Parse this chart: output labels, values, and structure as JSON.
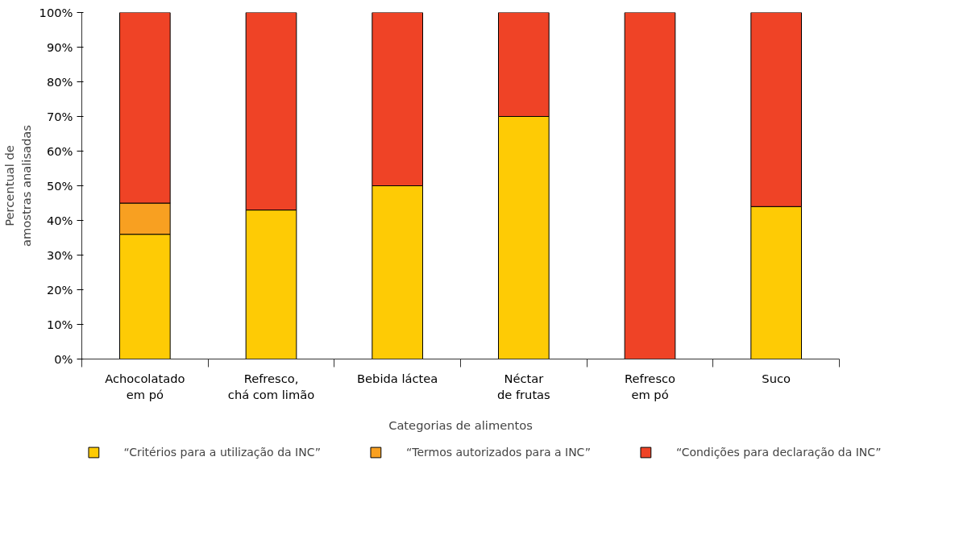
{
  "chart_data": {
    "type": "bar",
    "stacked": true,
    "xlabel": "Categorias de alimentos",
    "ylabel": "Percentual de\namostras analisadas",
    "categories": [
      "Achocolatado\nem pó",
      "Refresco,\nchá com limão",
      "Bebida láctea",
      "Néctar\nde frutas",
      "Refresco\nem pó",
      "Suco"
    ],
    "series": [
      {
        "name": "“Critérios para a utilização da INC”",
        "color": "#fecb05",
        "values": [
          36,
          43,
          50,
          70,
          0,
          44
        ]
      },
      {
        "name": "“Termos autorizados para a INC”",
        "color": "#f8a021",
        "values": [
          9,
          0,
          0,
          0,
          0,
          0
        ]
      },
      {
        "name": "“Condições para declaração da INC”",
        "color": "#ef4326",
        "values": [
          55,
          57,
          50,
          30,
          100,
          56
        ]
      }
    ],
    "ylim": [
      0,
      100
    ],
    "yticks": [
      {
        "value": 0,
        "label": "0%"
      },
      {
        "value": 10,
        "label": "10%"
      },
      {
        "value": 20,
        "label": "20%"
      },
      {
        "value": 30,
        "label": "30%"
      },
      {
        "value": 40,
        "label": "40%"
      },
      {
        "value": 50,
        "label": "50%"
      },
      {
        "value": 60,
        "label": "60%"
      },
      {
        "value": 70,
        "label": "70%"
      },
      {
        "value": 80,
        "label": "80%"
      },
      {
        "value": 90,
        "label": "90%"
      },
      {
        "value": 100,
        "label": "100%"
      }
    ],
    "grid": false,
    "legend": "bottom"
  }
}
